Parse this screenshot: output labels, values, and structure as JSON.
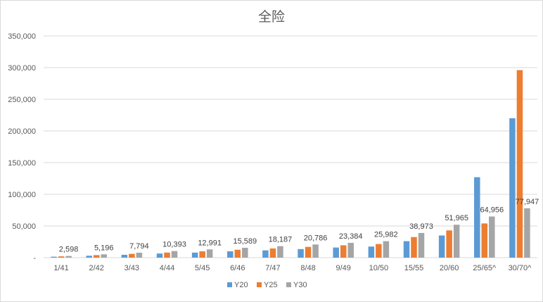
{
  "chart_data": {
    "type": "bar",
    "title": "全险",
    "xlabel": "",
    "ylabel": "",
    "categories": [
      "1/41",
      "2/42",
      "3/43",
      "4/44",
      "5/45",
      "6/46",
      "7/47",
      "8/48",
      "9/49",
      "10/50",
      "15/55",
      "20/60",
      "25/65^",
      "30/70^"
    ],
    "y_ticks": [
      "-",
      "50,000",
      "100,000",
      "150,000",
      "200,000",
      "250,000",
      "300,000",
      "350,000"
    ],
    "ylim": [
      0,
      350000
    ],
    "grid": true,
    "legend_position": "bottom",
    "series": [
      {
        "name": "Y20",
        "color": "#5b9bd5",
        "values": [
          1500,
          3000,
          4500,
          6500,
          8000,
          10000,
          11500,
          13500,
          16000,
          17500,
          26000,
          35000,
          127000,
          220000
        ]
      },
      {
        "name": "Y25",
        "color": "#ed7d31",
        "values": [
          2000,
          4000,
          6000,
          8000,
          10000,
          12500,
          14500,
          17000,
          19500,
          21500,
          32500,
          43000,
          54000,
          296000
        ]
      },
      {
        "name": "Y30",
        "color": "#a5a5a5",
        "values": [
          2598,
          5196,
          7794,
          10393,
          12991,
          15589,
          18187,
          20786,
          23384,
          25982,
          38973,
          51965,
          64956,
          77947
        ]
      }
    ],
    "data_labels_series": "Y30",
    "data_labels": [
      "2,598",
      "5,196",
      "7,794",
      "10,393",
      "12,991",
      "15,589",
      "18,187",
      "20,786",
      "23,384",
      "25,982",
      "38,973",
      "51,965",
      "64,956",
      "77,947"
    ]
  }
}
